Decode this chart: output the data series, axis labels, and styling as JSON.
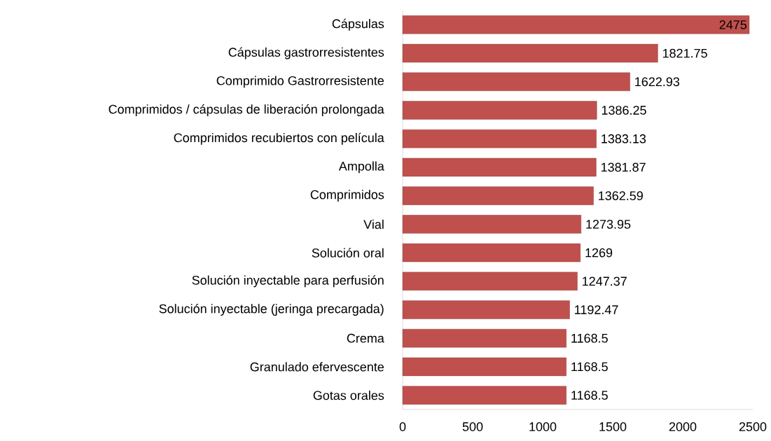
{
  "chart_data": {
    "type": "bar",
    "orientation": "horizontal",
    "categories": [
      "Cápsulas",
      "Cápsulas gastrorresistentes",
      "Comprimido Gastrorresistente",
      "Comprimidos / cápsulas de liberación prolongada",
      "Comprimidos recubiertos con película",
      "Ampolla",
      "Comprimidos",
      "Vial",
      "Solución oral",
      "Solución inyectable para perfusión",
      "Solución inyectable (jeringa precargada)",
      "Crema",
      "Granulado efervescente",
      "Gotas orales"
    ],
    "values": [
      2475,
      1821.75,
      1622.93,
      1386.25,
      1383.13,
      1381.87,
      1362.59,
      1273.95,
      1269,
      1247.37,
      1192.47,
      1168.5,
      1168.5,
      1168.5
    ],
    "color": "#c0504d",
    "data_labels": true,
    "xlim": [
      0,
      2500
    ],
    "xticks": [
      0,
      500,
      1000,
      1500,
      2000,
      2500
    ]
  }
}
